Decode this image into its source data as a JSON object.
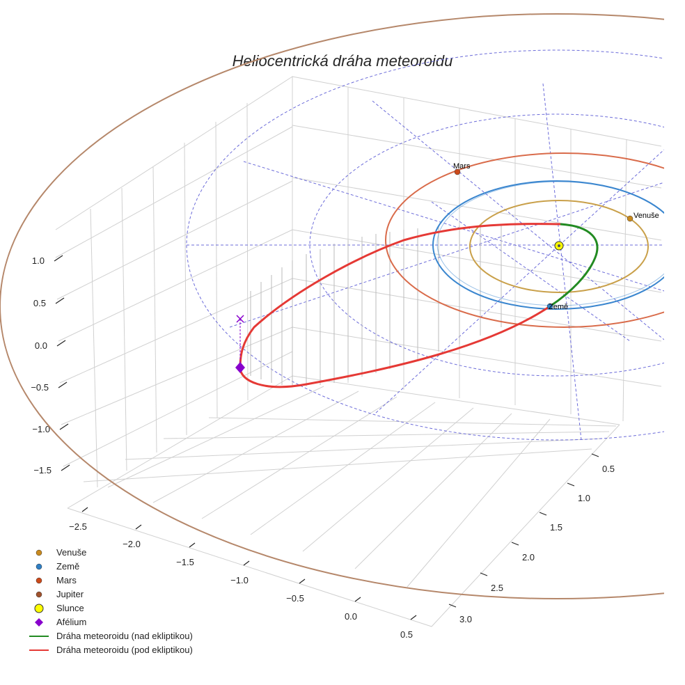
{
  "chart_data": {
    "type": "3d-orbit",
    "title": "Heliocentrická dráha meteoroidu",
    "z_ticks": [
      "1.0",
      "0.5",
      "0.0",
      "−0.5",
      "−1.0",
      "−1.5"
    ],
    "x_ticks": [
      "−2.5",
      "−2.0",
      "−1.5",
      "−1.0",
      "−0.5",
      "0.0",
      "0.5"
    ],
    "y_ticks": [
      "0.5",
      "1.0",
      "1.5",
      "2.0",
      "2.5",
      "3.0"
    ],
    "planets": [
      {
        "name": "Venuše",
        "label": "Venuše",
        "orbit_au": 0.72,
        "color": "#c9a04a",
        "marker": "#c98a1e"
      },
      {
        "name": "Země",
        "label": "Země",
        "orbit_au": 1.0,
        "color": "#3a86cf",
        "marker": "#2f7fc4"
      },
      {
        "name": "Mars",
        "label": "Mars",
        "orbit_au": 1.52,
        "color": "#d96b4a",
        "marker": "#cc4a1a"
      },
      {
        "name": "Jupiter",
        "label": "",
        "orbit_au": 5.2,
        "color": "#b5876a",
        "marker": "#a0522d"
      }
    ],
    "sun": {
      "name": "Slunce",
      "color": "#ffff00"
    },
    "aphelion": {
      "name": "Afélium",
      "color": "#8800cc"
    },
    "meteoroid": {
      "above_label": "Dráha meteoroidu (nad ekliptikou)",
      "below_label": "Dráha meteoroidu (pod ekliptikou)",
      "above_color": "#228b22",
      "below_color": "#e53935"
    },
    "legend": [
      {
        "label": "Venuše",
        "type": "dot",
        "color": "#c98a1e"
      },
      {
        "label": "Země",
        "type": "dot",
        "color": "#2f7fc4"
      },
      {
        "label": "Mars",
        "type": "dot",
        "color": "#cc4a1a"
      },
      {
        "label": "Jupiter",
        "type": "dot",
        "color": "#a0522d"
      },
      {
        "label": "Slunce",
        "type": "sun",
        "color": "#ffff00"
      },
      {
        "label": "Afélium",
        "type": "diamond",
        "color": "#8800cc"
      },
      {
        "label": "Dráha meteoroidu (nad ekliptikou)",
        "type": "line",
        "color": "#228b22"
      },
      {
        "label": "Dráha meteoroidu (pod ekliptikou)",
        "type": "line",
        "color": "#e53935"
      }
    ],
    "grid_color": "#6b6bd9"
  }
}
